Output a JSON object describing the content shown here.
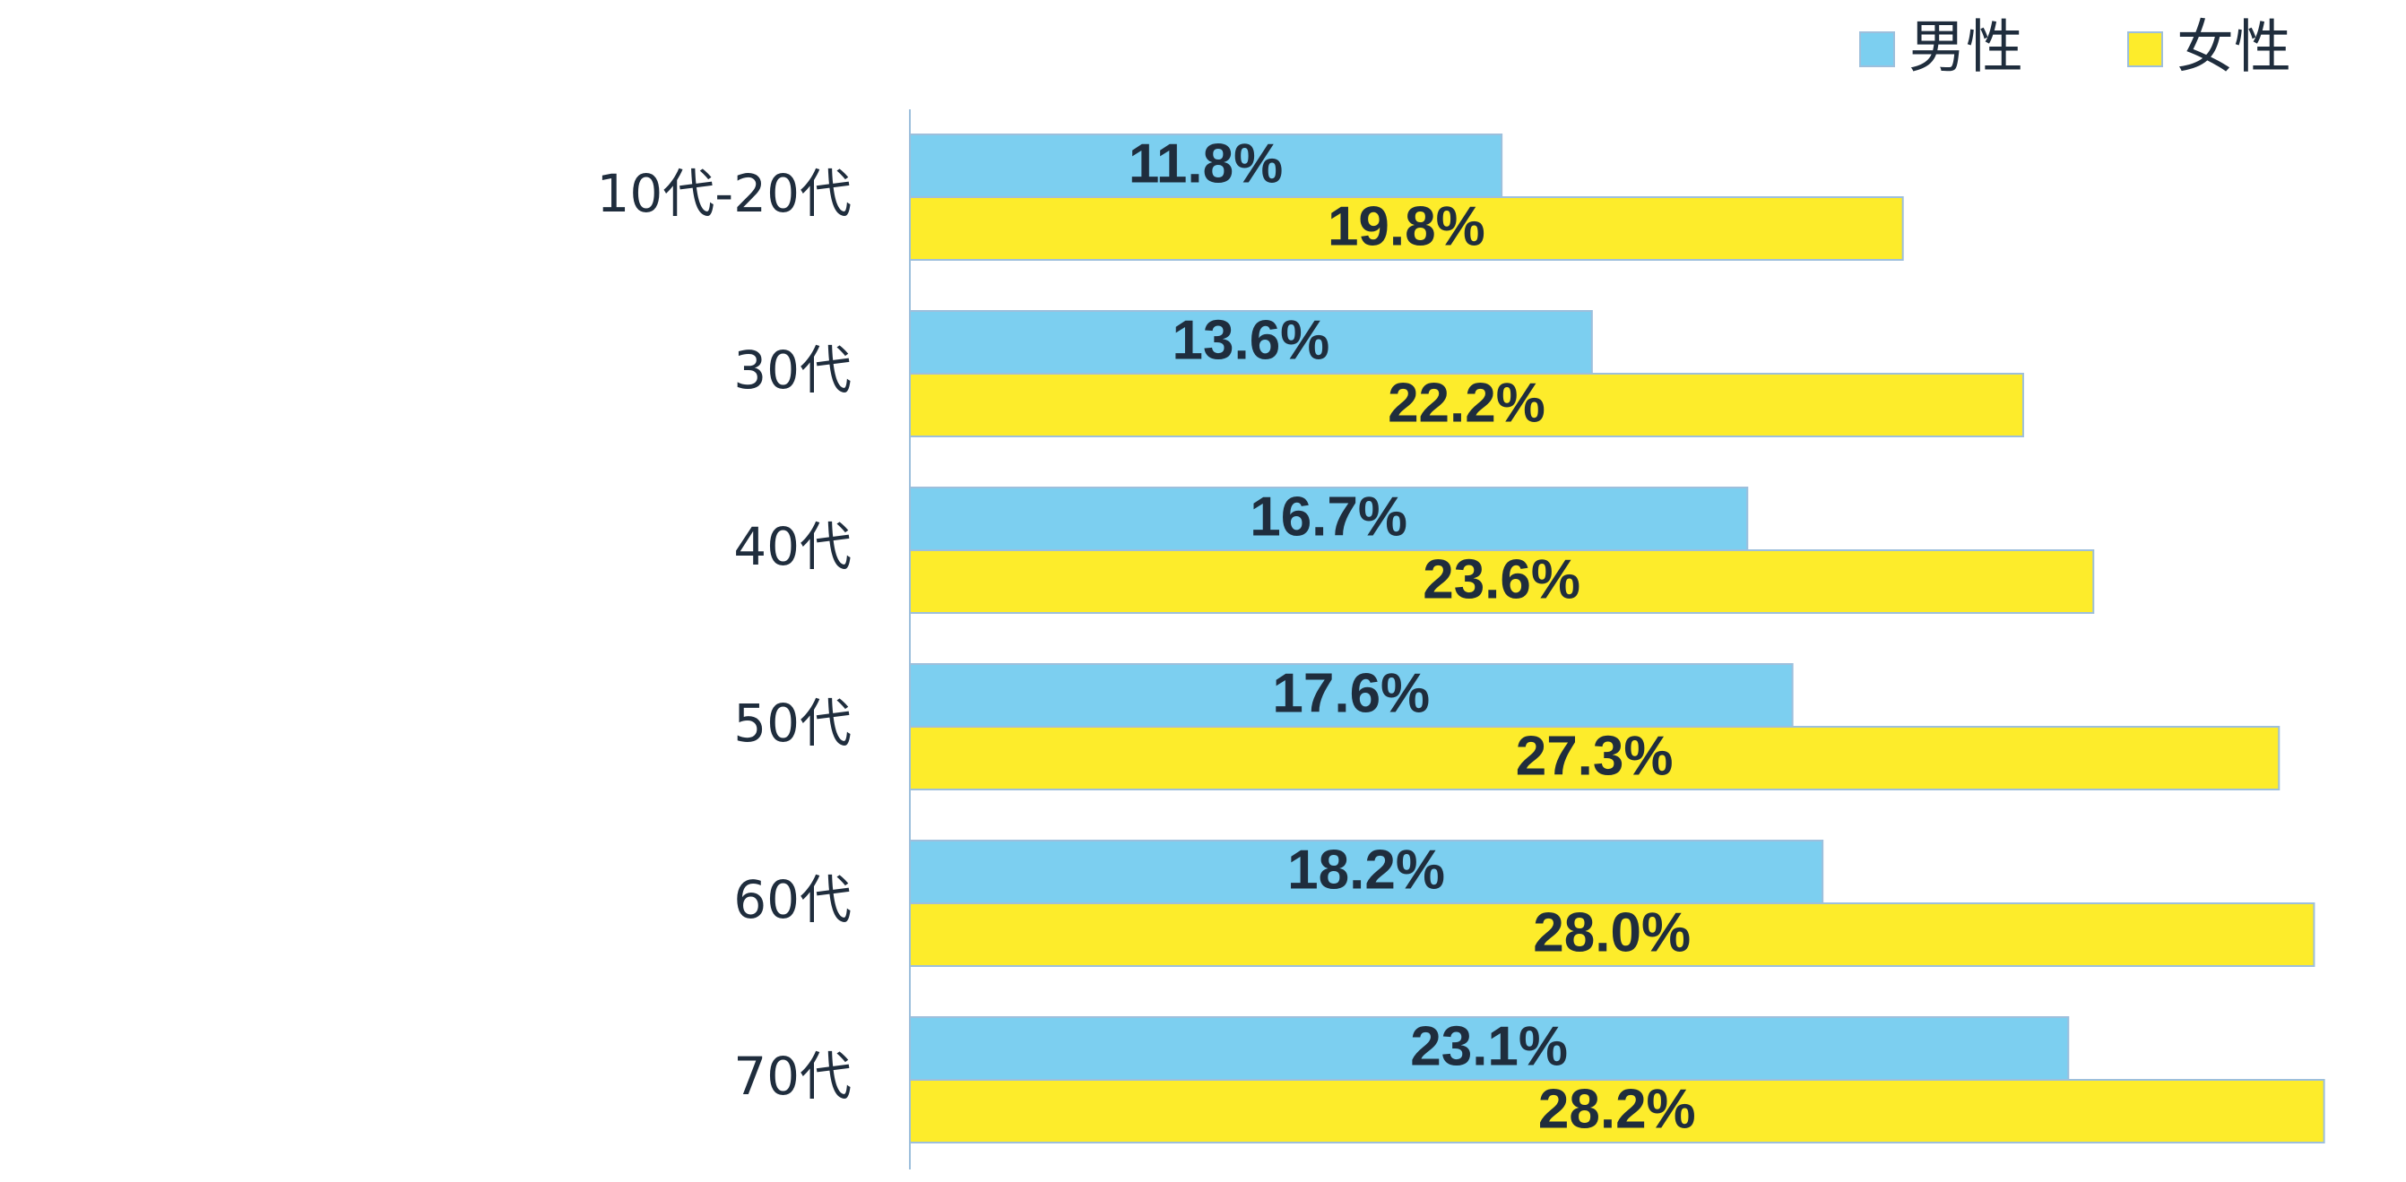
{
  "chart_data": {
    "type": "bar",
    "orientation": "horizontal",
    "categories": [
      "10代-20代",
      "30代",
      "40代",
      "50代",
      "60代",
      "70代"
    ],
    "series": [
      {
        "name": "男性",
        "color": "#7ccff0",
        "values": [
          11.8,
          13.6,
          16.7,
          17.6,
          18.2,
          23.1
        ],
        "labels": [
          "11.8%",
          "13.6%",
          "16.7%",
          "17.6%",
          "18.2%",
          "23.1%"
        ]
      },
      {
        "name": "女性",
        "color": "#fdec2b",
        "values": [
          19.8,
          22.2,
          23.6,
          27.3,
          28.0,
          28.2
        ],
        "labels": [
          "19.8%",
          "22.2%",
          "23.6%",
          "27.3%",
          "28.0%",
          "28.2%"
        ]
      }
    ],
    "xlim": [
      0,
      28.6
    ],
    "grid": false,
    "legend": "top-right",
    "bar_border_color": "#9dbfdc",
    "axis_color": "#9dbfdc",
    "text_color": "#1f2d3d"
  }
}
